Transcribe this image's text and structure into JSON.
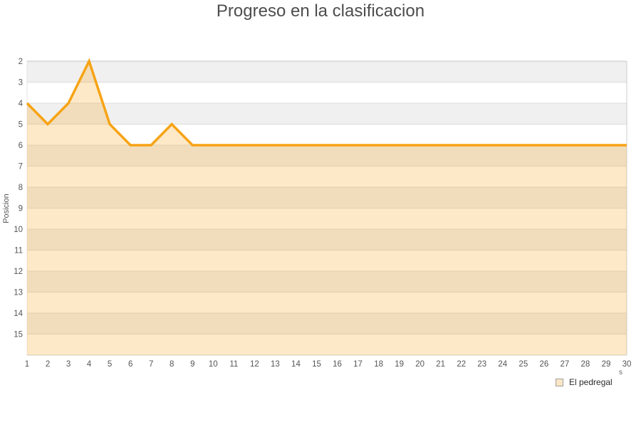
{
  "title": "Progreso en la clasificacion",
  "y_axis_title": "Posicion",
  "legend": {
    "label": "El pedregal",
    "swatch_fill": "#fbe7c6",
    "swatch_border": "#9e9e9e"
  },
  "axis_title_fragment": "s",
  "chart_data": {
    "type": "area",
    "title": "Progreso en la clasificacion",
    "xlabel": "",
    "ylabel": "Posicion",
    "x": [
      1,
      2,
      3,
      4,
      5,
      6,
      7,
      8,
      9,
      10,
      11,
      12,
      13,
      14,
      15,
      16,
      17,
      18,
      19,
      20,
      21,
      22,
      23,
      24,
      25,
      26,
      27,
      28,
      29,
      30
    ],
    "series": [
      {
        "name": "El pedregal",
        "values": [
          4,
          5,
          4,
          2,
          5,
          6,
          6,
          5,
          6,
          6,
          6,
          6,
          6,
          6,
          6,
          6,
          6,
          6,
          6,
          6,
          6,
          6,
          6,
          6,
          6,
          6,
          6,
          6,
          6,
          6
        ]
      }
    ],
    "y_axis": {
      "inverted": true,
      "min": 2,
      "max": 16,
      "tick_labels": [
        2,
        3,
        4,
        5,
        6,
        7,
        8,
        9,
        10,
        11,
        12,
        13,
        14,
        15
      ]
    },
    "grid": true,
    "legend_position": "bottom-right",
    "colors": {
      "line": "#f7a314",
      "area_fill": "rgba(247,163,20,0.24)",
      "stripe_dark": "#f0f0f0",
      "stripe_light": "#ffffff",
      "gridline": "#dcdcdc",
      "plot_border": "#cccccc",
      "top_border": "#c5c5c5",
      "tick_label": "#555555"
    }
  }
}
